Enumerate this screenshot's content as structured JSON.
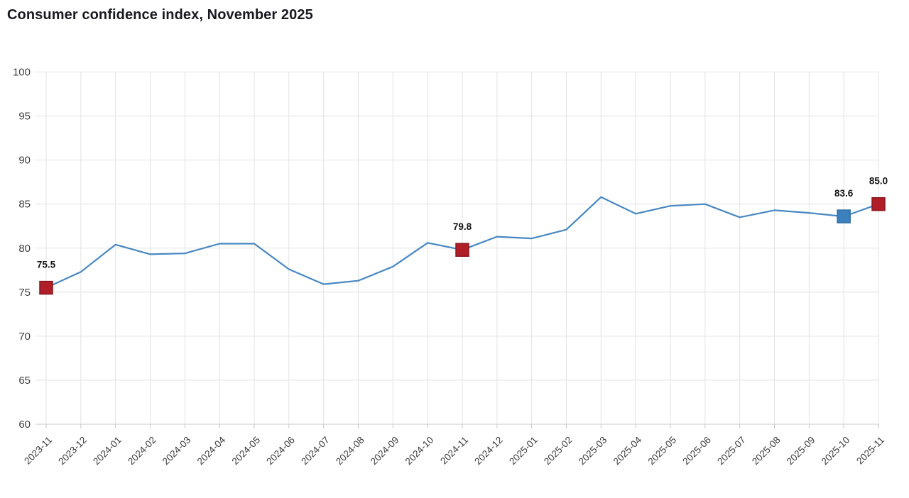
{
  "header": {
    "title": "Consumer confidence index, November 2025"
  },
  "chart_data": {
    "type": "line",
    "title": "Consumer confidence index, November 2025",
    "xlabel": "",
    "ylabel": "",
    "ylim": [
      60,
      100
    ],
    "yticks": [
      60,
      65,
      70,
      75,
      80,
      85,
      90,
      95,
      100
    ],
    "grid": "on",
    "legend": "none",
    "categories": [
      "2023-11",
      "2023-12",
      "2024-01",
      "2024-02",
      "2024-03",
      "2024-04",
      "2024-05",
      "2024-06",
      "2024-07",
      "2024-08",
      "2024-09",
      "2024-10",
      "2024-11",
      "2024-12",
      "2025-01",
      "2025-02",
      "2025-03",
      "2025-04",
      "2025-05",
      "2025-06",
      "2025-07",
      "2025-08",
      "2025-09",
      "2025-10",
      "2025-11"
    ],
    "values": [
      75.5,
      77.3,
      80.4,
      79.3,
      79.4,
      80.5,
      80.5,
      77.6,
      75.9,
      76.3,
      77.9,
      80.6,
      79.8,
      81.3,
      81.1,
      82.1,
      85.8,
      83.9,
      84.8,
      85.0,
      83.5,
      84.3,
      84.0,
      83.6,
      85.0
    ],
    "annotations": [
      {
        "x": "2023-11",
        "value": 75.5,
        "label": "75.5",
        "marker": "square",
        "color": "#b01e28",
        "border": "#8a161e"
      },
      {
        "x": "2024-11",
        "value": 79.8,
        "label": "79.8",
        "marker": "square",
        "color": "#b01e28",
        "border": "#8a161e"
      },
      {
        "x": "2025-10",
        "value": 83.6,
        "label": "83.6",
        "marker": "square",
        "color": "#3c80bd",
        "border": "#2e6da4"
      },
      {
        "x": "2025-11",
        "value": 85.0,
        "label": "85.0",
        "marker": "square",
        "color": "#b01e28",
        "border": "#8a161e"
      }
    ],
    "colors": {
      "line": "#4788c2",
      "grid": "#e3e3e3",
      "axis": "#c9c9c9",
      "tick_text": "#3f3f3f",
      "title_text": "#191922",
      "data_label_text": "#141414",
      "marker_red": "#b01e28",
      "marker_blue": "#3c80bd",
      "background": "#ffffff"
    }
  }
}
